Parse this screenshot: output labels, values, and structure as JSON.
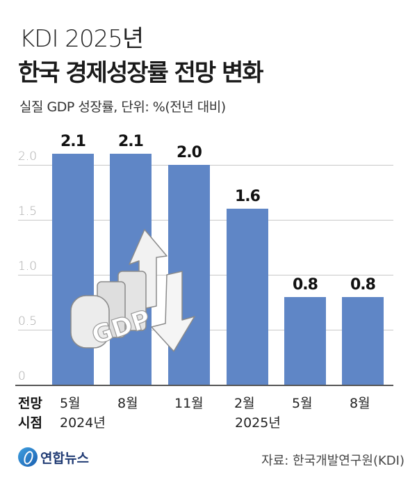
{
  "header": {
    "supertitle": "KDI 2025년",
    "title": "한국 경제성장률 전망 변화",
    "subtitle": "실질 GDP 성장률, 단위: %(전년 대비)"
  },
  "axis": {
    "row_head_1": "전망",
    "row_head_2": "시점",
    "years": [
      "2024년",
      "2025년"
    ]
  },
  "footer": {
    "logo_text": "연합뉴스",
    "source": "자료: 한국개발연구원(KDI)"
  },
  "colors": {
    "bar": "#5f86c6",
    "grid": "#c8c8c8"
  },
  "chart_data": {
    "type": "bar",
    "title": "KDI 2025년 한국 경제성장률 전망 변화",
    "subtitle": "실질 GDP 성장률, 단위: %(전년 대비)",
    "categories": [
      "2024년 5월",
      "2024년 8월",
      "2024년 11월",
      "2025년 2월",
      "2025년 5월",
      "2025년 8월"
    ],
    "tick_labels": [
      "5월",
      "8월",
      "11월",
      "2월",
      "5월",
      "8월"
    ],
    "values": [
      2.1,
      2.1,
      2.0,
      1.6,
      0.8,
      0.8
    ],
    "value_labels": [
      "2.1",
      "2.1",
      "2.0",
      "1.6",
      "0.8",
      "0.8"
    ],
    "xlabel": "전망 시점",
    "ylabel": "%",
    "ylim": [
      0,
      2.0
    ],
    "yticks": [
      "0",
      "0.5",
      "1.0",
      "1.5",
      "2.0"
    ],
    "grid": true,
    "annotations": [
      "GDP 3D illustration with up/down arrows"
    ],
    "source": "자료: 한국개발연구원(KDI)"
  }
}
